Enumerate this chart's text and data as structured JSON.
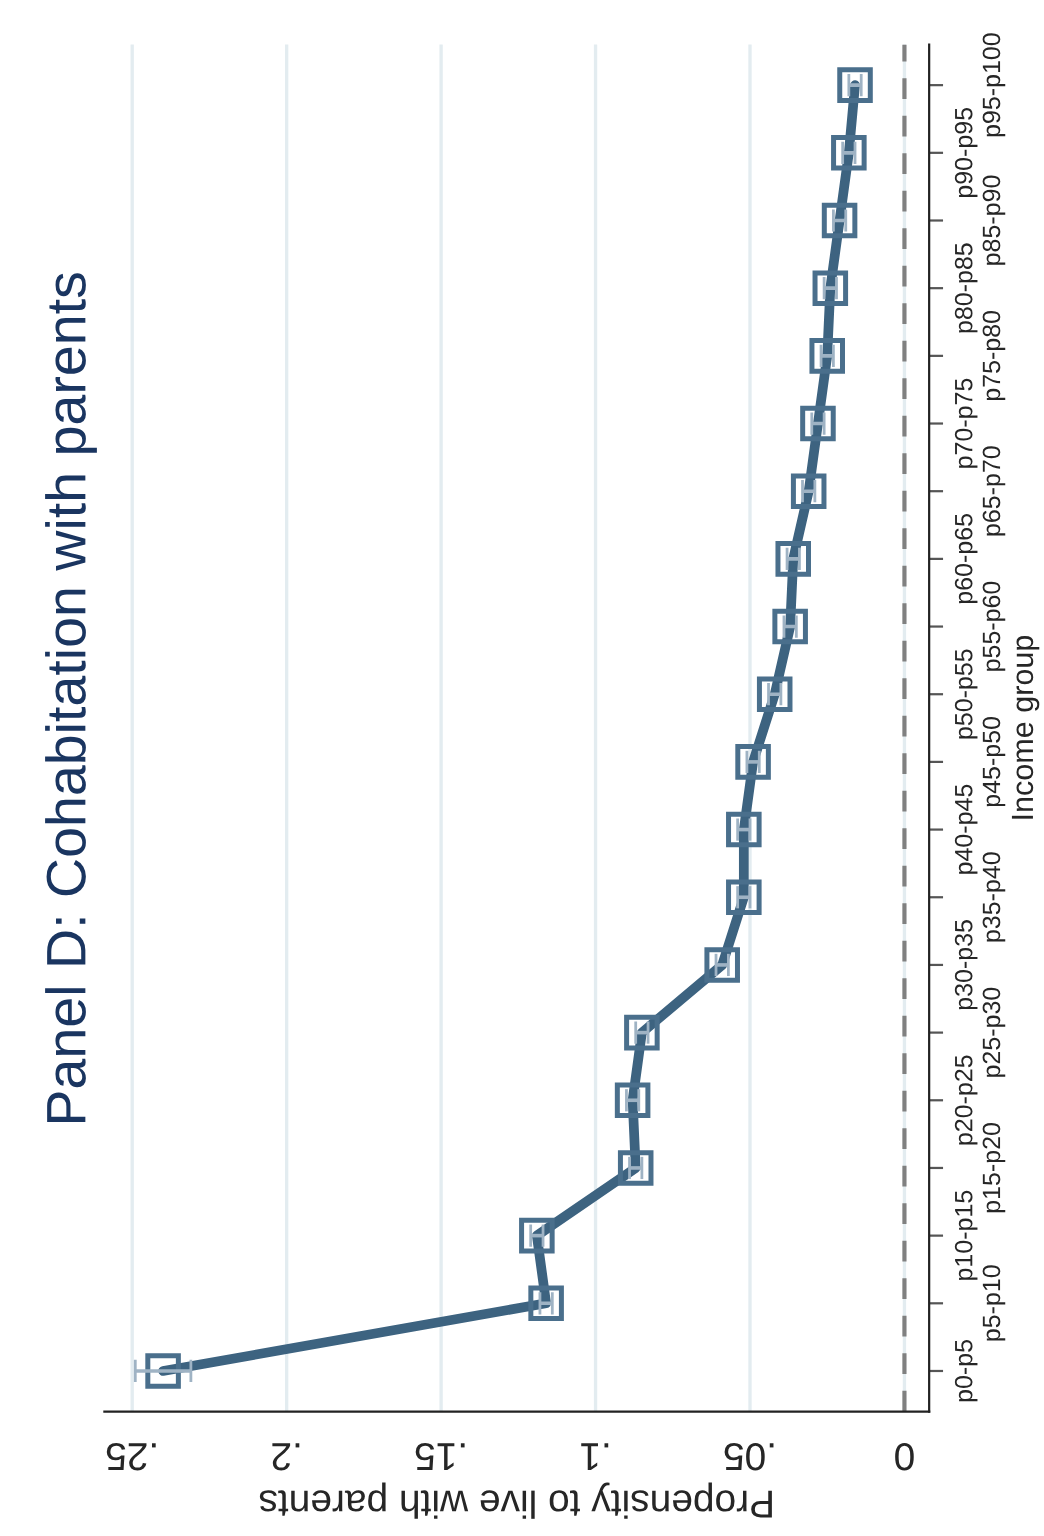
{
  "chart_data": {
    "type": "line",
    "orientation": "horizontal",
    "title": "Panel D: Cohabitation with parents",
    "xlabel": "Propensity to live with parents",
    "ylabel": "Income group",
    "categories": [
      "p95-p100",
      "p90-p95",
      "p85-p90",
      "p80-p85",
      "p75-p80",
      "p70-p75",
      "p65-p70",
      "p60-p65",
      "p55-p60",
      "p50-p55",
      "p45-p50",
      "p40-p45",
      "p35-p40",
      "p30-p35",
      "p25-p30",
      "p20-p25",
      "p15-p20",
      "p10-p15",
      "p5-p10",
      "p0-p5"
    ],
    "series": [
      {
        "color": "#3d6380",
        "values": [
          0.016,
          0.018,
          0.021,
          0.024,
          0.025,
          0.028,
          0.031,
          0.036,
          0.037,
          0.042,
          0.049,
          0.052,
          0.052,
          0.059,
          0.085,
          0.088,
          0.087,
          0.119,
          0.116,
          0.24
        ],
        "errors": [
          0.002,
          0.002,
          0.002,
          0.002,
          0.002,
          0.002,
          0.002,
          0.002,
          0.002,
          0.002,
          0.002,
          0.002,
          0.002,
          0.002,
          0.002,
          0.002,
          0.002,
          0.002,
          0.002,
          0.009
        ]
      }
    ],
    "xlim": [
      0.259,
      -0.008
    ],
    "xticks": [
      {
        "value": 0.25,
        "label": ".25"
      },
      {
        "value": 0.2,
        "label": ".2"
      },
      {
        "value": 0.15,
        "label": ".15"
      },
      {
        "value": 0.1,
        "label": ".1"
      },
      {
        "value": 0.05,
        "label": ".05"
      },
      0
    ],
    "ref_lines": [
      {
        "axis": "x",
        "value": 0,
        "color": "#808080",
        "line_style": "dashed"
      }
    ],
    "grid": "x",
    "marker": "square",
    "line_style": "solid",
    "legend": false
  }
}
